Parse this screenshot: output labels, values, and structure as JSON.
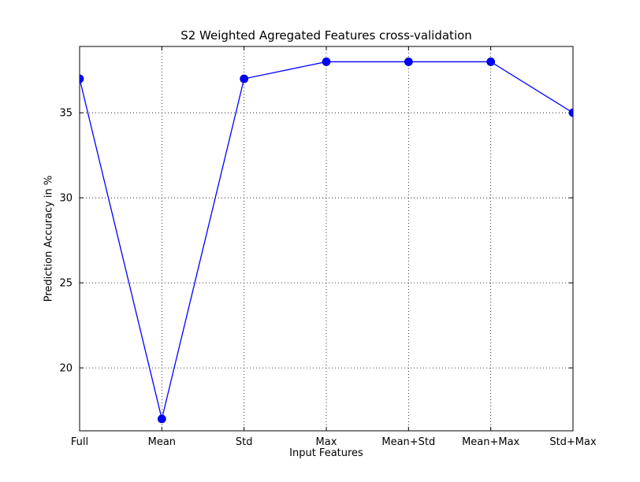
{
  "chart_data": {
    "type": "line",
    "title": "S2 Weighted Agregated Features cross-validation",
    "xlabel": "Input Features",
    "ylabel": "Prediction Accuracy in %",
    "categories": [
      "Full",
      "Mean",
      "Std",
      "Max",
      "Mean+Std",
      "Mean+Max",
      "Std+Max"
    ],
    "values": [
      37,
      17,
      37,
      38,
      38,
      38,
      35
    ],
    "yticks": [
      20,
      25,
      30,
      35
    ],
    "ylim": [
      16.3,
      38.9
    ],
    "grid": true,
    "legend": "none",
    "line_color": "#0000ff",
    "marker_color": "#0000cc",
    "marker": "circle"
  }
}
